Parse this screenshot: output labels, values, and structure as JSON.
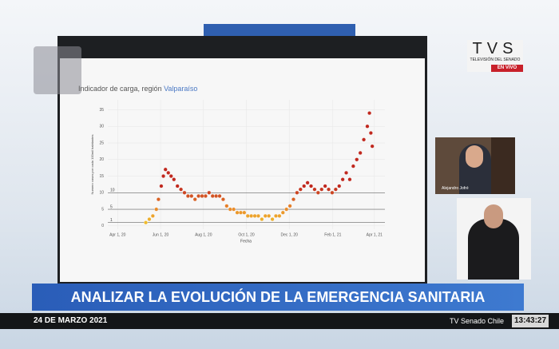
{
  "broadcast": {
    "logo": "TVS",
    "channel": "TELEVISIÓN DEL SENADO",
    "live": "EN VIVO",
    "participant": "Alejandro Jofré",
    "banner": "ANALIZAR LA EVOLUCIÓN DE LA EMERGENCIA SANITARIA",
    "date": "24 DE MARZO 2021",
    "source": "TV Senado Chile",
    "time": "13:43:27"
  },
  "chart_data": {
    "type": "scatter",
    "title": "Indicador de carga, región ",
    "title_highlight": "Valparaíso",
    "x_label": "Fecha",
    "y_label": "Numero casos por cada 100mil habitantes",
    "x": [
      40,
      45,
      50,
      55,
      58,
      62,
      65,
      68,
      72,
      76,
      80,
      85,
      90,
      95,
      100,
      105,
      110,
      115,
      120,
      125,
      130,
      135,
      140,
      145,
      150,
      155,
      160,
      165,
      170,
      175,
      180,
      185,
      190,
      195,
      200,
      205,
      210,
      215,
      220,
      225,
      230,
      235,
      240,
      245,
      250,
      255,
      260,
      265,
      270,
      275,
      280,
      285,
      290,
      295,
      300,
      305,
      310,
      315,
      320,
      325,
      330,
      335,
      340,
      345,
      350,
      355,
      358,
      360,
      362
    ],
    "values": [
      1,
      2,
      3,
      5,
      8,
      12,
      15,
      17,
      16,
      15,
      14,
      12,
      11,
      10,
      9,
      9,
      8,
      9,
      9,
      9,
      10,
      9,
      9,
      9,
      8,
      6,
      5,
      5,
      4,
      4,
      4,
      3,
      3,
      3,
      3,
      2,
      3,
      3,
      2,
      3,
      3,
      4,
      5,
      6,
      8,
      10,
      11,
      12,
      13,
      12,
      11,
      10,
      11,
      12,
      11,
      10,
      11,
      12,
      14,
      16,
      14,
      18,
      20,
      22,
      26,
      30,
      34,
      28,
      24
    ],
    "color_scale": [
      "#f2d22e",
      "#e8862a",
      "#c0281e"
    ],
    "xlim": [
      -14,
      380
    ],
    "ylim": [
      -1,
      38
    ],
    "xticks": [
      {
        "value": 0,
        "label": "Apr 1, 20"
      },
      {
        "value": 61,
        "label": "Jun 1, 20"
      },
      {
        "value": 122,
        "label": "Aug 1, 20"
      },
      {
        "value": 183,
        "label": "Oct 1, 20"
      },
      {
        "value": 244,
        "label": "Dec 1, 20"
      },
      {
        "value": 306,
        "label": "Feb 1, 21"
      },
      {
        "value": 365,
        "label": "Apr 1, 21"
      }
    ],
    "yticks": [
      0,
      5,
      10,
      15,
      20,
      25,
      30,
      35
    ],
    "reference_lines": [
      {
        "value": 10,
        "label": "10"
      },
      {
        "value": 5,
        "label": "5"
      },
      {
        "value": 1,
        "label": "1"
      }
    ],
    "grid": true
  }
}
